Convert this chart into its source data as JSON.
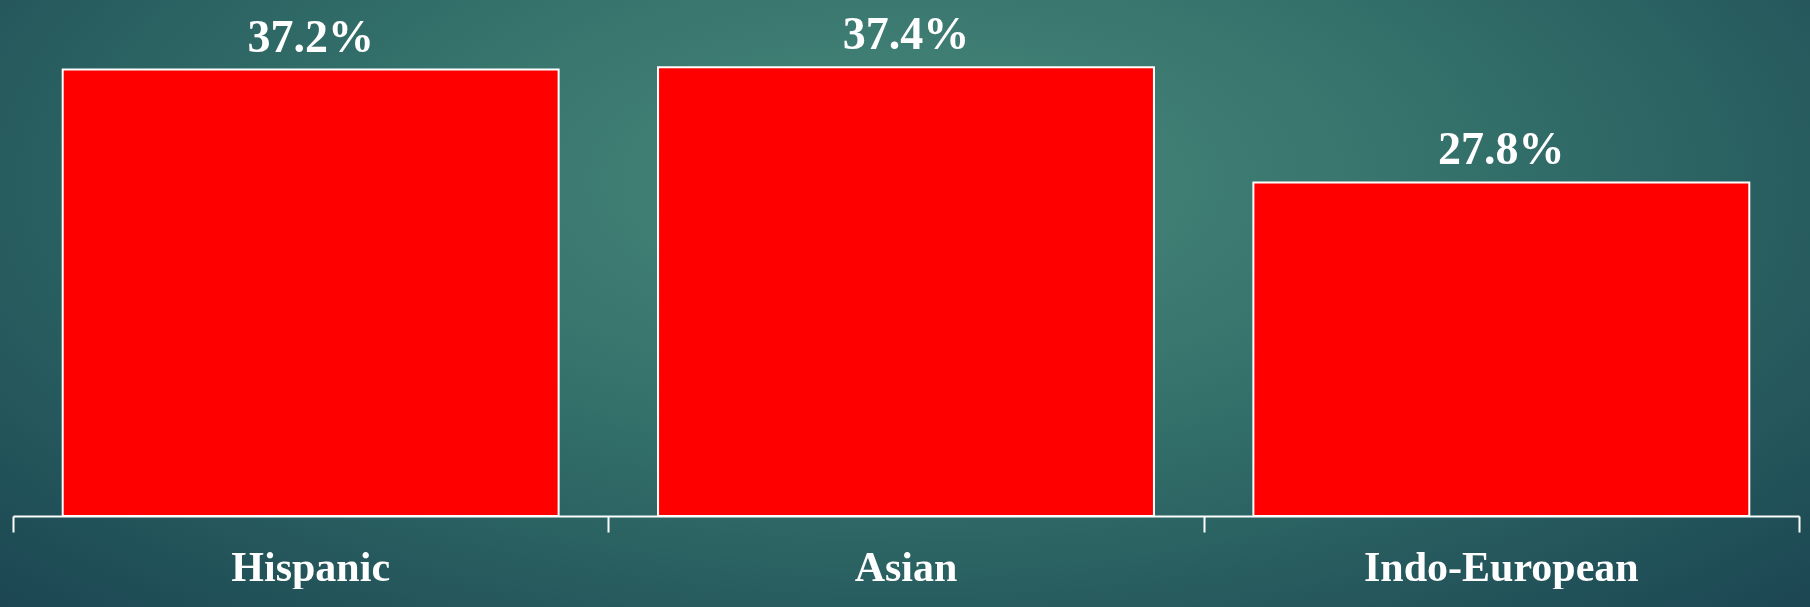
{
  "chart_data": {
    "type": "bar",
    "categories": [
      "Hispanic",
      "Asian",
      "Indo-European"
    ],
    "values": [
      37.2,
      37.4,
      27.8
    ],
    "value_labels": [
      "37.2%",
      "37.4%",
      "27.8%"
    ],
    "color": "#ff0000"
  }
}
